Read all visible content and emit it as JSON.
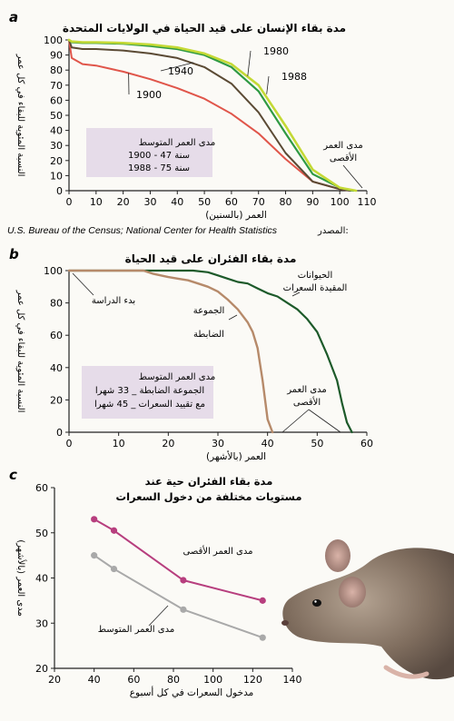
{
  "panel_a": {
    "letter": "a",
    "source_en": "U.S. Bureau of the Census; National Center for Health Statistics",
    "source_ar": "المصدر:"
  },
  "panel_b": {
    "letter": "b"
  },
  "panel_c": {
    "letter": "c"
  },
  "colors": {
    "red": "#e0554a",
    "brown": "#5b4a34",
    "green": "#2f9a43",
    "yellowgreen": "#c4d935",
    "darkgreen": "#1d5a2a",
    "tan": "#b68a6a",
    "magenta": "#b73e7e",
    "grey": "#a9a9a9",
    "box": "#e6dce9"
  },
  "chart_data": [
    {
      "type": "line",
      "title": "مدة بقاء الإنسان على قيد الحياة في الولايات المتحدة",
      "xlabel": "العمر (بالسنين)",
      "ylabel": "النسبة المئوية للبقاء في كل عمر",
      "xlim": [
        0,
        110
      ],
      "ylim": [
        0,
        100
      ],
      "xticks": [
        0,
        10,
        20,
        30,
        40,
        50,
        60,
        70,
        80,
        90,
        100,
        110
      ],
      "yticks": [
        0,
        10,
        20,
        30,
        40,
        50,
        60,
        70,
        80,
        90,
        100
      ],
      "grid": false,
      "series": [
        {
          "name": "1900",
          "x": [
            0,
            1,
            5,
            10,
            20,
            30,
            40,
            50,
            60,
            70,
            80,
            90,
            100,
            104
          ],
          "y": [
            100,
            88,
            84,
            83,
            79,
            74,
            68,
            61,
            51,
            38,
            21,
            6,
            1,
            0
          ]
        },
        {
          "name": "1940",
          "x": [
            0,
            1,
            5,
            10,
            20,
            30,
            40,
            50,
            60,
            70,
            80,
            90,
            100,
            104
          ],
          "y": [
            100,
            95,
            94,
            94,
            93,
            91,
            88,
            82,
            71,
            52,
            25,
            6,
            1,
            0
          ]
        },
        {
          "name": "1980",
          "x": [
            0,
            1,
            5,
            10,
            20,
            30,
            40,
            50,
            60,
            70,
            80,
            90,
            100,
            105
          ],
          "y": [
            100,
            98.5,
            98,
            98,
            97.5,
            96,
            94,
            90,
            82,
            66,
            38,
            11,
            2,
            0
          ]
        },
        {
          "name": "1988",
          "x": [
            0,
            1,
            5,
            10,
            20,
            30,
            40,
            50,
            60,
            70,
            80,
            90,
            100,
            106
          ],
          "y": [
            100,
            99,
            98.5,
            98.5,
            98,
            97,
            95,
            91,
            84,
            70,
            43,
            14,
            2,
            0
          ]
        }
      ],
      "annotations": {
        "box_title": "مدى العمر المتوسط",
        "box_line1": "1900 - 47 سنة",
        "box_line2": "1988 - 75 سنة",
        "max_label_line1": "مدى العمر",
        "max_label_line2": "الأقصى"
      }
    },
    {
      "type": "line",
      "title": "مدة بقاء الفئران على قيد الحياة",
      "xlabel": "العمر (بالأشهر)",
      "ylabel": "النسبة المئوية للبقاء في كل عمر",
      "xlim": [
        0,
        60
      ],
      "ylim": [
        0,
        100
      ],
      "xticks": [
        0,
        10,
        20,
        30,
        40,
        50,
        60
      ],
      "yticks": [
        0,
        20,
        40,
        60,
        80,
        100
      ],
      "grid": false,
      "series": [
        {
          "name": "الحيوانات المقيدة السعرات",
          "x": [
            0,
            20,
            25,
            28,
            30,
            32,
            34,
            36,
            38,
            40,
            42,
            44,
            46,
            48,
            50,
            52,
            54,
            55,
            56,
            57
          ],
          "y": [
            100,
            100,
            100,
            99,
            97,
            95,
            93,
            92,
            89,
            86,
            84,
            80,
            76,
            70,
            62,
            48,
            32,
            18,
            6,
            0
          ]
        },
        {
          "name": "الجموعة الضابطة",
          "x": [
            0,
            15,
            17,
            20,
            22,
            24,
            26,
            28,
            30,
            32,
            34,
            36,
            37,
            38,
            39,
            40,
            41
          ],
          "y": [
            100,
            100,
            98,
            96,
            95,
            94,
            92,
            90,
            87,
            82,
            76,
            68,
            62,
            52,
            32,
            8,
            0
          ]
        }
      ],
      "annotations": {
        "start_label": "بدء الدراسة",
        "box_title": "مدى العمر المتوسط",
        "box_line1": "الجموعة الضابطة _ 33 شهرا",
        "box_line2": "مع تقييد السعرات _ 45 شهرا",
        "max_label_line1": "مدى العمر",
        "max_label_line2": "الأقصى",
        "restricted_line1": "الحيوانات",
        "restricted_line2": "المقيدة السعرات",
        "control_line1": "الجموعة",
        "control_line2": "الضابطة"
      }
    },
    {
      "type": "line",
      "title": "مدة بقاء الفئران حية عند مستويات مختلفة من دخول السعرات",
      "xlabel": "مدخول السعرات في كل أسبوع",
      "ylabel": "مدى العمر (بالأشهر)",
      "xlim": [
        20,
        140
      ],
      "ylim": [
        20,
        60
      ],
      "xticks": [
        20,
        40,
        60,
        80,
        100,
        120,
        140
      ],
      "yticks": [
        20,
        30,
        40,
        50,
        60
      ],
      "grid": false,
      "series": [
        {
          "name": "مدى العمر الأقصى",
          "x": [
            40,
            50,
            85,
            125
          ],
          "y": [
            53,
            50.5,
            39.5,
            35
          ]
        },
        {
          "name": "مدى العمر المتوسط",
          "x": [
            40,
            50,
            85,
            125
          ],
          "y": [
            45,
            42,
            33,
            26.8
          ]
        }
      ]
    }
  ]
}
